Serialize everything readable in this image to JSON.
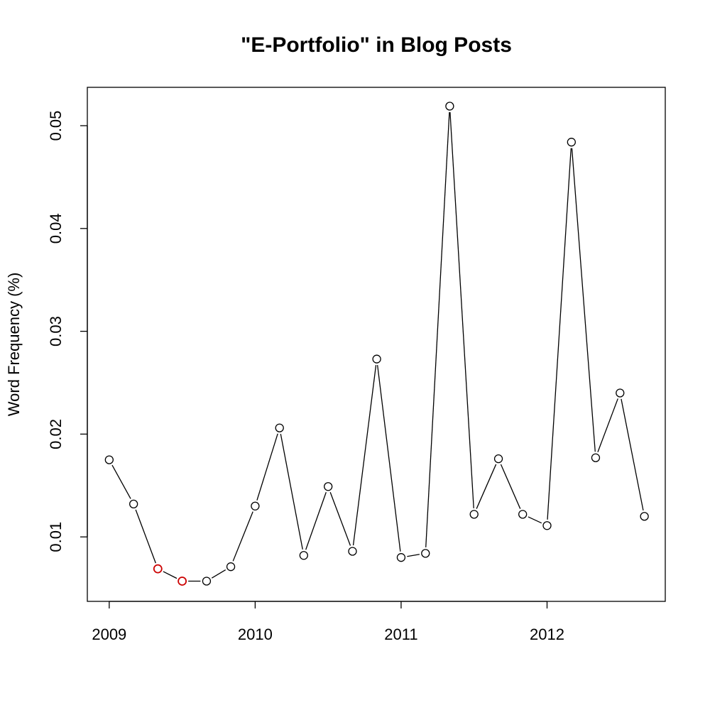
{
  "chart_data": {
    "type": "line",
    "title": "\"E-Portfolio\" in Blog Posts",
    "xlabel": "",
    "ylabel": "Word Frequency (%)",
    "xlim": [
      2008.85,
      2012.81
    ],
    "ylim": [
      0.00373,
      0.05373
    ],
    "x_ticks": [
      2009,
      2010,
      2011,
      2012
    ],
    "x_tick_labels": [
      "2009",
      "2010",
      "2011",
      "2012"
    ],
    "y_ticks": [
      0.01,
      0.02,
      0.03,
      0.04,
      0.05
    ],
    "y_tick_labels": [
      "0.01",
      "0.02",
      "0.03",
      "0.04",
      "0.05"
    ],
    "grid": false,
    "line_color": "#000000",
    "highlight_color": "#cc0000",
    "points": [
      {
        "x": 2009.0,
        "y": 0.0175,
        "highlight": false
      },
      {
        "x": 2009.167,
        "y": 0.0132,
        "highlight": false
      },
      {
        "x": 2009.333,
        "y": 0.0069,
        "highlight": true
      },
      {
        "x": 2009.5,
        "y": 0.0057,
        "highlight": true
      },
      {
        "x": 2009.667,
        "y": 0.0057,
        "highlight": false
      },
      {
        "x": 2009.833,
        "y": 0.0071,
        "highlight": false
      },
      {
        "x": 2010.0,
        "y": 0.013,
        "highlight": false
      },
      {
        "x": 2010.167,
        "y": 0.0206,
        "highlight": false
      },
      {
        "x": 2010.333,
        "y": 0.0082,
        "highlight": false
      },
      {
        "x": 2010.5,
        "y": 0.0149,
        "highlight": false
      },
      {
        "x": 2010.667,
        "y": 0.0086,
        "highlight": false
      },
      {
        "x": 2010.833,
        "y": 0.0273,
        "highlight": false
      },
      {
        "x": 2011.0,
        "y": 0.008,
        "highlight": false
      },
      {
        "x": 2011.167,
        "y": 0.0084,
        "highlight": false
      },
      {
        "x": 2011.333,
        "y": 0.0519,
        "highlight": false
      },
      {
        "x": 2011.5,
        "y": 0.0122,
        "highlight": false
      },
      {
        "x": 2011.667,
        "y": 0.0176,
        "highlight": false
      },
      {
        "x": 2011.833,
        "y": 0.0122,
        "highlight": false
      },
      {
        "x": 2012.0,
        "y": 0.0111,
        "highlight": false
      },
      {
        "x": 2012.167,
        "y": 0.0484,
        "highlight": false
      },
      {
        "x": 2012.333,
        "y": 0.0177,
        "highlight": false
      },
      {
        "x": 2012.5,
        "y": 0.024,
        "highlight": false
      },
      {
        "x": 2012.667,
        "y": 0.012,
        "highlight": false
      }
    ]
  }
}
